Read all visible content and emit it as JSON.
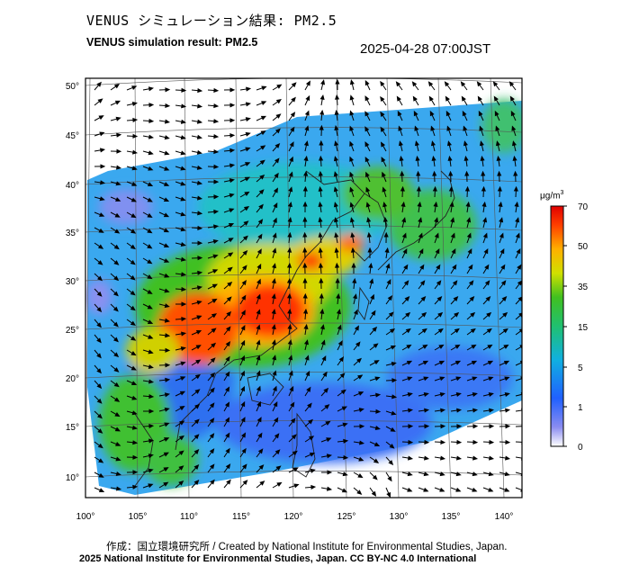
{
  "header": {
    "title_jp": "VENUS シミュレーション結果: PM2.5",
    "title_en": "VENUS simulation result: PM2.5",
    "timestamp": "2025-04-28 07:00JST"
  },
  "map": {
    "lon_ticks": [
      "100°",
      "105°",
      "110°",
      "115°",
      "120°",
      "125°",
      "130°",
      "135°",
      "140°"
    ],
    "lat_ticks": [
      "50°",
      "45°",
      "40°",
      "35°",
      "30°",
      "25°",
      "20°",
      "15°",
      "10°"
    ],
    "lon_range": [
      100,
      142
    ],
    "lat_range": [
      9,
      51
    ]
  },
  "colorbar": {
    "unit": "μg/m",
    "unit_sup": "3",
    "ticks": [
      "70",
      "50",
      "35",
      "15",
      "5",
      "1",
      "0"
    ],
    "colors": [
      "#e00000",
      "#ff7800",
      "#ffd000",
      "#30c000",
      "#28c0d0",
      "#2070ff",
      "#5060e0",
      "#ffffff"
    ]
  },
  "footer": {
    "credit": "作成：国立環境研究所 / Created by National Institute for Environmental Studies, Japan.",
    "copyright": "2025 National Institute for Environmental Studies, Japan. CC BY-NC 4.0 International"
  }
}
